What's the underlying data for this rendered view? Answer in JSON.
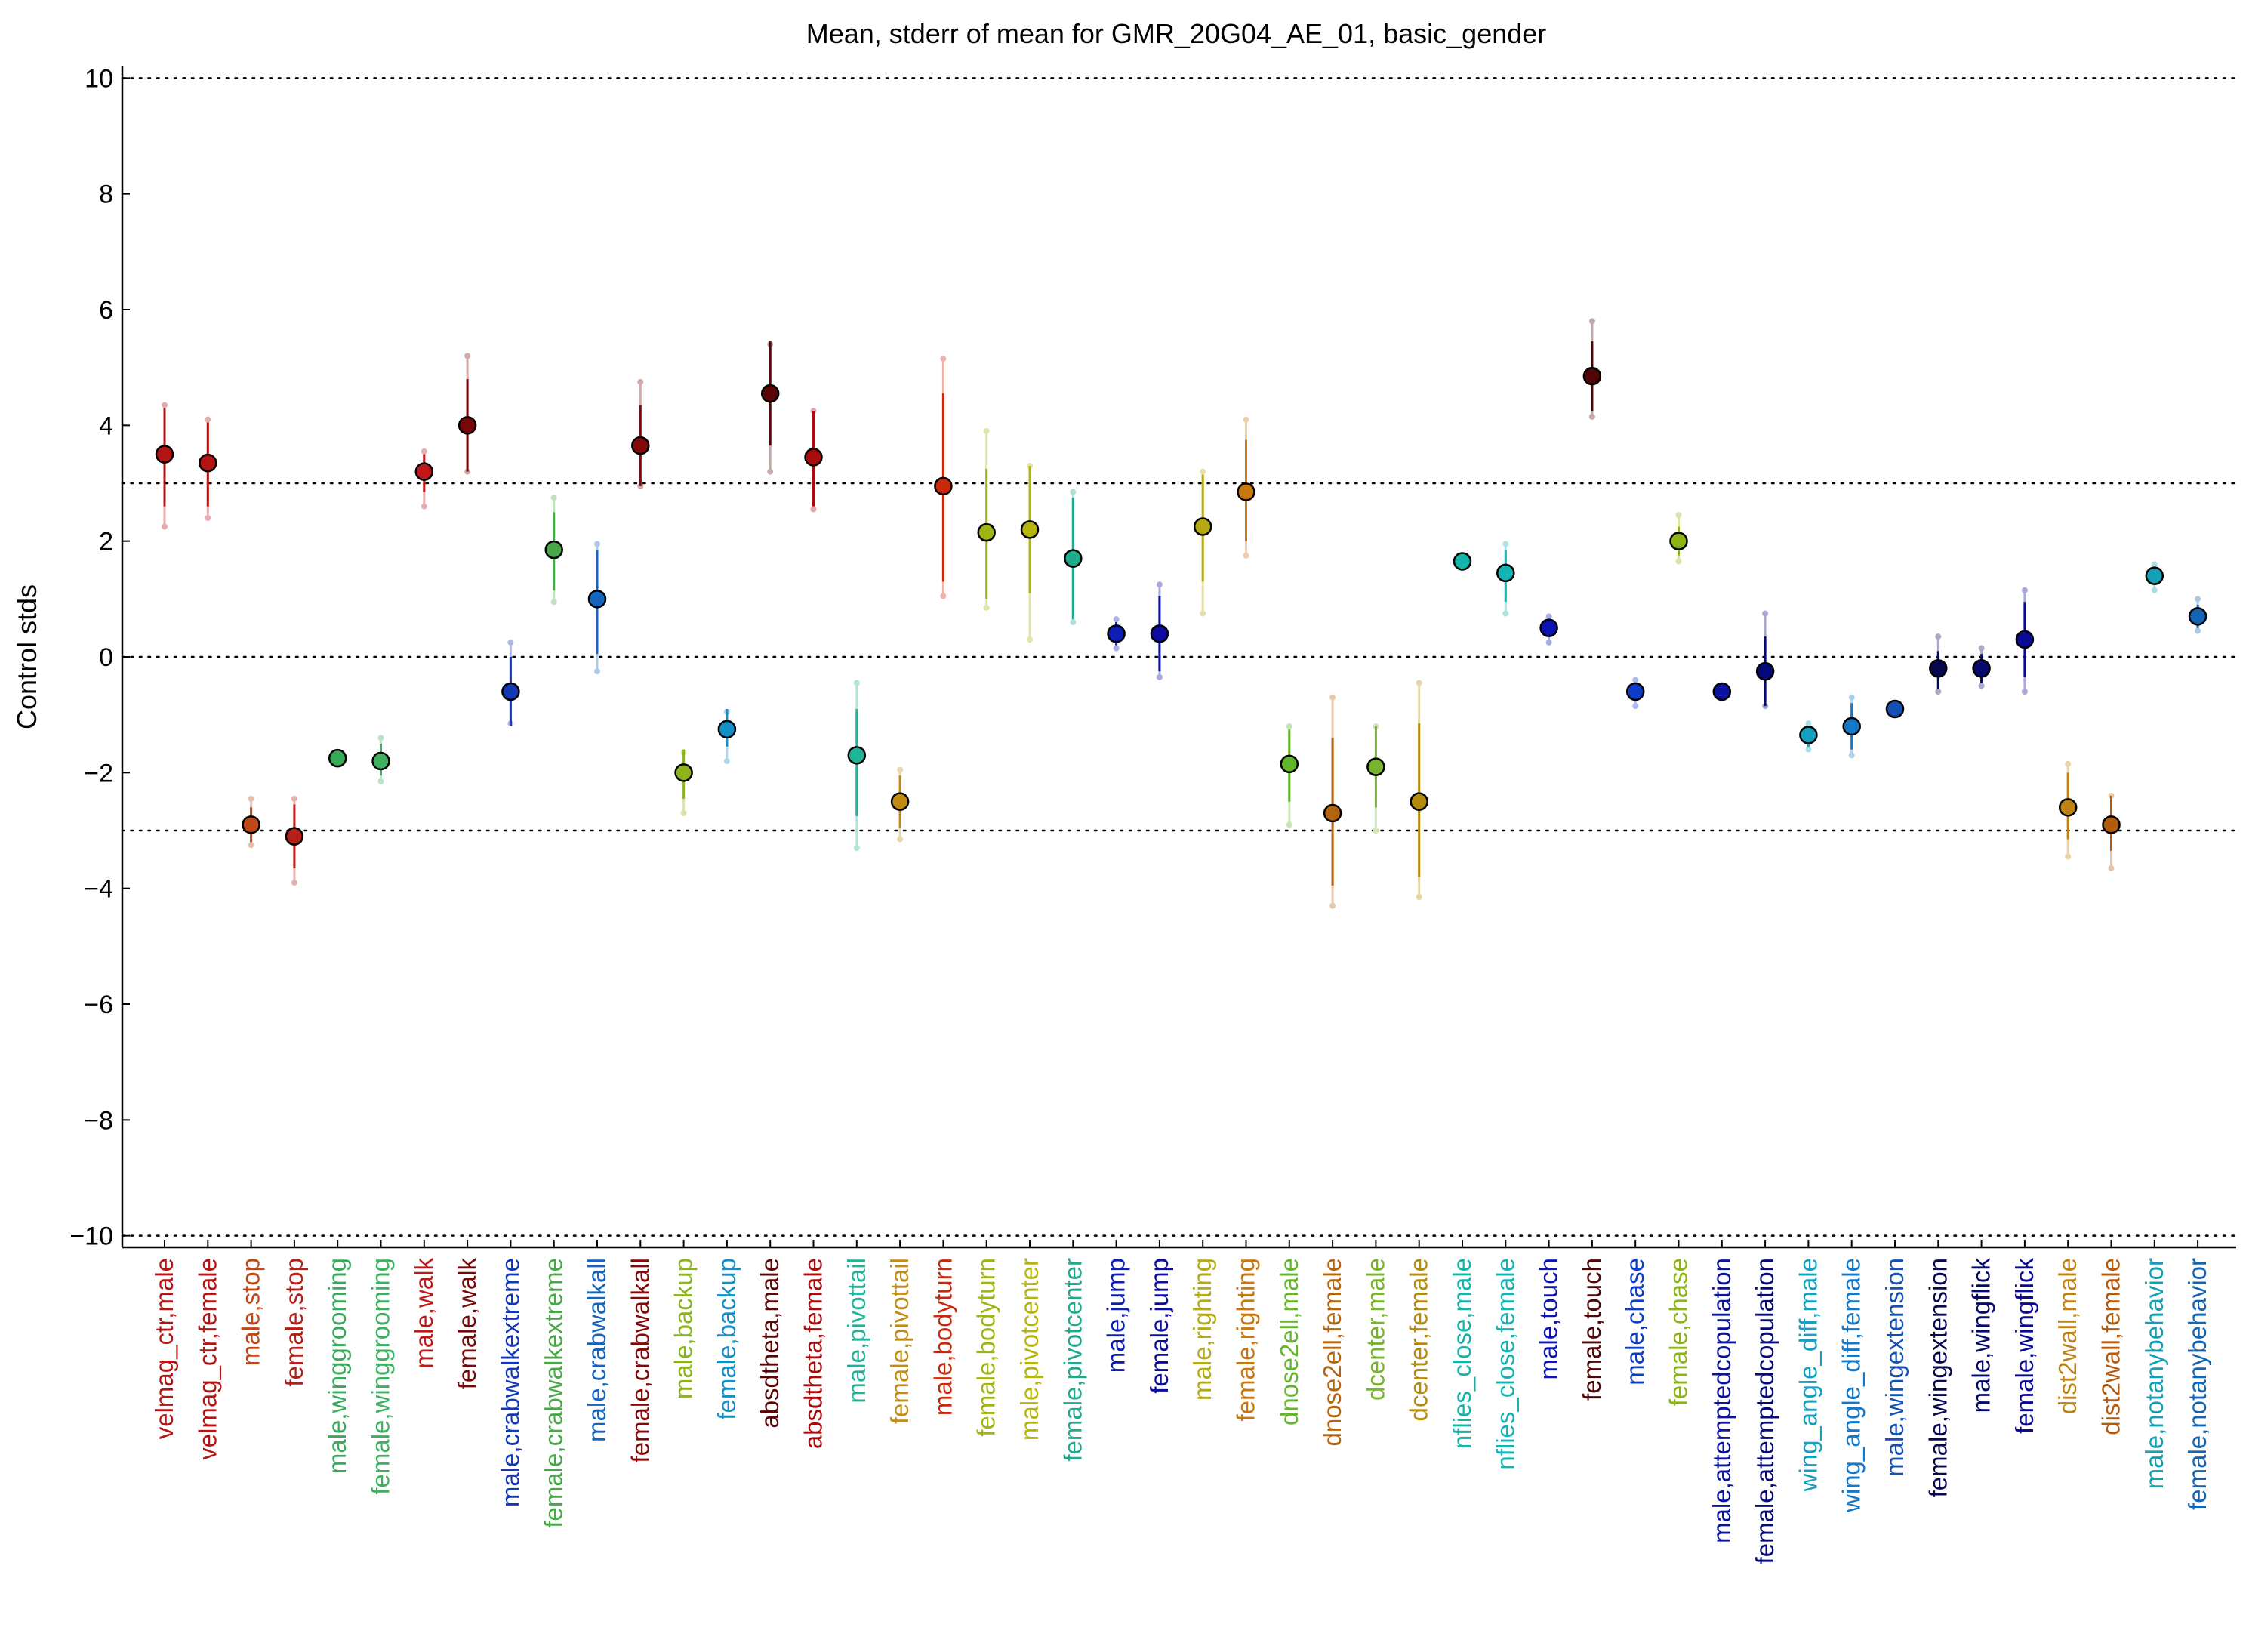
{
  "chart_data": {
    "type": "scatter",
    "title": "Mean, stderr of mean for GMR_20G04_AE_01, basic_gender",
    "xlabel": "",
    "ylabel": "Control stds",
    "ylim": [
      -10.2,
      10.2
    ],
    "yticks": [
      10,
      8,
      6,
      4,
      2,
      0,
      -2,
      -4,
      -6,
      -8,
      -10
    ],
    "ytick_labels": [
      "10",
      "8",
      "6",
      "4",
      "2",
      "0",
      "−2",
      "−4",
      "−6",
      "−8",
      "−10"
    ],
    "hlines": [
      10,
      3,
      0,
      -3,
      -10
    ],
    "grid": false,
    "points": [
      {
        "label": "velmag_ctr,male",
        "mean": 3.5,
        "se_lo": 2.6,
        "se_hi": 4.3,
        "sd_lo": 2.25,
        "sd_hi": 4.35,
        "color": "#b41414"
      },
      {
        "label": "velmag_ctr,female",
        "mean": 3.35,
        "se_lo": 2.6,
        "se_hi": 4.05,
        "sd_lo": 2.4,
        "sd_hi": 4.1,
        "color": "#b41414"
      },
      {
        "label": "male,stop",
        "mean": -2.9,
        "se_lo": -3.2,
        "se_hi": -2.6,
        "sd_lo": -3.25,
        "sd_hi": -2.45,
        "color": "#c04818"
      },
      {
        "label": "female,stop",
        "mean": -3.1,
        "se_lo": -3.65,
        "se_hi": -2.55,
        "sd_lo": -3.9,
        "sd_hi": -2.45,
        "color": "#b42018"
      },
      {
        "label": "male,winggrooming",
        "mean": -1.75,
        "se_lo": -1.75,
        "se_hi": -1.75,
        "sd_lo": -1.75,
        "sd_hi": -1.75,
        "color": "#38aa5a"
      },
      {
        "label": "female,winggrooming",
        "mean": -1.8,
        "se_lo": -2.05,
        "se_hi": -1.5,
        "sd_lo": -2.15,
        "sd_hi": -1.4,
        "color": "#3eb060"
      },
      {
        "label": "male,walk",
        "mean": 3.2,
        "se_lo": 2.85,
        "se_hi": 3.5,
        "sd_lo": 2.6,
        "sd_hi": 3.55,
        "color": "#c01818"
      },
      {
        "label": "female,walk",
        "mean": 4.0,
        "se_lo": 3.2,
        "se_hi": 4.8,
        "sd_lo": 3.2,
        "sd_hi": 5.2,
        "color": "#780808"
      },
      {
        "label": "male,crabwalkextreme",
        "mean": -0.6,
        "se_lo": -1.2,
        "se_hi": 0.0,
        "sd_lo": -1.15,
        "sd_hi": 0.25,
        "color": "#1438b4"
      },
      {
        "label": "female,crabwalkextreme",
        "mean": 1.85,
        "se_lo": 1.15,
        "se_hi": 2.5,
        "sd_lo": 0.95,
        "sd_hi": 2.75,
        "color": "#48a848"
      },
      {
        "label": "male,crabwalkall",
        "mean": 1.0,
        "se_lo": 0.05,
        "se_hi": 1.85,
        "sd_lo": -0.25,
        "sd_hi": 1.95,
        "color": "#1464c0"
      },
      {
        "label": "female,crabwalkall",
        "mean": 3.65,
        "se_lo": 2.95,
        "se_hi": 4.35,
        "sd_lo": 2.95,
        "sd_hi": 4.75,
        "color": "#840a0a"
      },
      {
        "label": "male,backup",
        "mean": -2.0,
        "se_lo": -2.45,
        "se_hi": -1.6,
        "sd_lo": -2.7,
        "sd_hi": -1.65,
        "color": "#8cb41e"
      },
      {
        "label": "female,backup",
        "mean": -1.25,
        "se_lo": -1.55,
        "se_hi": -0.9,
        "sd_lo": -1.8,
        "sd_hi": -0.95,
        "color": "#1490c8"
      },
      {
        "label": "absdtheta,male",
        "mean": 4.55,
        "se_lo": 3.65,
        "se_hi": 5.45,
        "sd_lo": 3.2,
        "sd_hi": 5.4,
        "color": "#5a0606"
      },
      {
        "label": "absdtheta,female",
        "mean": 3.45,
        "se_lo": 2.6,
        "se_hi": 4.25,
        "sd_lo": 2.55,
        "sd_hi": 4.25,
        "color": "#a80c0c"
      },
      {
        "label": "male,pivottail",
        "mean": -1.7,
        "se_lo": -2.75,
        "se_hi": -0.9,
        "sd_lo": -3.3,
        "sd_hi": -0.45,
        "color": "#1eb49a"
      },
      {
        "label": "female,pivottail",
        "mean": -2.5,
        "se_lo": -2.95,
        "se_hi": -2.05,
        "sd_lo": -3.15,
        "sd_hi": -1.95,
        "color": "#c08c14"
      },
      {
        "label": "male,bodyturn",
        "mean": 2.95,
        "se_lo": 1.3,
        "se_hi": 4.55,
        "sd_lo": 1.05,
        "sd_hi": 5.15,
        "color": "#c8280c"
      },
      {
        "label": "female,bodyturn",
        "mean": 2.15,
        "se_lo": 1.0,
        "se_hi": 3.25,
        "sd_lo": 0.85,
        "sd_hi": 3.9,
        "color": "#a0b414"
      },
      {
        "label": "male,pivotcenter",
        "mean": 2.2,
        "se_lo": 1.1,
        "se_hi": 3.3,
        "sd_lo": 0.3,
        "sd_hi": 3.3,
        "color": "#b4b40c"
      },
      {
        "label": "female,pivotcenter",
        "mean": 1.7,
        "se_lo": 0.65,
        "se_hi": 2.75,
        "sd_lo": 0.6,
        "sd_hi": 2.85,
        "color": "#1eaa8c"
      },
      {
        "label": "male,jump",
        "mean": 0.4,
        "se_lo": 0.2,
        "se_hi": 0.6,
        "sd_lo": 0.15,
        "sd_hi": 0.65,
        "color": "#0c1eb4"
      },
      {
        "label": "female,jump",
        "mean": 0.4,
        "se_lo": -0.25,
        "se_hi": 1.05,
        "sd_lo": -0.35,
        "sd_hi": 1.25,
        "color": "#0c0ca0"
      },
      {
        "label": "male,righting",
        "mean": 2.25,
        "se_lo": 1.3,
        "se_hi": 3.15,
        "sd_lo": 0.75,
        "sd_hi": 3.2,
        "color": "#b4aa14"
      },
      {
        "label": "female,righting",
        "mean": 2.85,
        "se_lo": 2.0,
        "se_hi": 3.75,
        "sd_lo": 1.75,
        "sd_hi": 4.1,
        "color": "#c8780c"
      },
      {
        "label": "dnose2ell,male",
        "mean": -1.85,
        "se_lo": -2.5,
        "se_hi": -1.25,
        "sd_lo": -2.9,
        "sd_hi": -1.2,
        "color": "#64b42d"
      },
      {
        "label": "dnose2ell,female",
        "mean": -2.7,
        "se_lo": -3.95,
        "se_hi": -1.4,
        "sd_lo": -4.3,
        "sd_hi": -0.7,
        "color": "#b4640c"
      },
      {
        "label": "dcenter,male",
        "mean": -1.9,
        "se_lo": -2.6,
        "se_hi": -1.2,
        "sd_lo": -3.0,
        "sd_hi": -1.2,
        "color": "#78b42d"
      },
      {
        "label": "dcenter,female",
        "mean": -2.5,
        "se_lo": -3.8,
        "se_hi": -1.15,
        "sd_lo": -4.15,
        "sd_hi": -0.45,
        "color": "#b48c0c"
      },
      {
        "label": "nflies_close,male",
        "mean": 1.65,
        "se_lo": 1.6,
        "se_hi": 1.7,
        "sd_lo": 1.6,
        "sd_hi": 1.7,
        "color": "#14b4aa"
      },
      {
        "label": "nflies_close,female",
        "mean": 1.45,
        "se_lo": 0.95,
        "se_hi": 1.85,
        "sd_lo": 0.75,
        "sd_hi": 1.95,
        "color": "#14b4b4"
      },
      {
        "label": "male,touch",
        "mean": 0.5,
        "se_lo": 0.35,
        "se_hi": 0.65,
        "sd_lo": 0.25,
        "sd_hi": 0.7,
        "color": "#0c14b4"
      },
      {
        "label": "female,touch",
        "mean": 4.85,
        "se_lo": 4.25,
        "se_hi": 5.45,
        "sd_lo": 4.15,
        "sd_hi": 5.8,
        "color": "#500606"
      },
      {
        "label": "male,chase",
        "mean": -0.6,
        "se_lo": -0.75,
        "se_hi": -0.45,
        "sd_lo": -0.85,
        "sd_hi": -0.4,
        "color": "#0c3cc8"
      },
      {
        "label": "female,chase",
        "mean": 2.0,
        "se_lo": 1.75,
        "se_hi": 2.25,
        "sd_lo": 1.65,
        "sd_hi": 2.45,
        "color": "#8cb414"
      },
      {
        "label": "male,attemptedcopulation",
        "mean": -0.6,
        "se_lo": -0.6,
        "se_hi": -0.6,
        "sd_lo": -0.6,
        "sd_hi": -0.6,
        "color": "#0a14a0"
      },
      {
        "label": "female,attemptedcopulation",
        "mean": -0.25,
        "se_lo": -0.85,
        "se_hi": 0.35,
        "sd_lo": -0.85,
        "sd_hi": 0.75,
        "color": "#060a78"
      },
      {
        "label": "wing_angle_diff,male",
        "mean": -1.35,
        "se_lo": -1.55,
        "se_hi": -1.2,
        "sd_lo": -1.6,
        "sd_hi": -1.15,
        "color": "#14a0be"
      },
      {
        "label": "wing_angle_diff,female",
        "mean": -1.2,
        "se_lo": -1.6,
        "se_hi": -0.8,
        "sd_lo": -1.7,
        "sd_hi": -0.7,
        "color": "#1478c8"
      },
      {
        "label": "male,wingextension",
        "mean": -0.9,
        "se_lo": -0.9,
        "se_hi": -0.9,
        "sd_lo": -0.9,
        "sd_hi": -0.9,
        "color": "#1450b4"
      },
      {
        "label": "female,wingextension",
        "mean": -0.2,
        "se_lo": -0.55,
        "se_hi": 0.1,
        "sd_lo": -0.6,
        "sd_hi": 0.35,
        "color": "#080850"
      },
      {
        "label": "male,wingflick",
        "mean": -0.2,
        "se_lo": -0.45,
        "se_hi": 0.05,
        "sd_lo": -0.5,
        "sd_hi": 0.15,
        "color": "#060a6e"
      },
      {
        "label": "female,wingflick",
        "mean": 0.3,
        "se_lo": -0.35,
        "se_hi": 0.95,
        "sd_lo": -0.6,
        "sd_hi": 1.15,
        "color": "#0a0a96"
      },
      {
        "label": "dist2wall,male",
        "mean": -2.6,
        "se_lo": -3.15,
        "se_hi": -2.0,
        "sd_lo": -3.45,
        "sd_hi": -1.85,
        "color": "#be8214"
      },
      {
        "label": "dist2wall,female",
        "mean": -2.9,
        "se_lo": -3.35,
        "se_hi": -2.4,
        "sd_lo": -3.65,
        "sd_hi": -2.4,
        "color": "#b45a0c"
      },
      {
        "label": "male,notanybehavior",
        "mean": 1.4,
        "se_lo": 1.25,
        "se_hi": 1.55,
        "sd_lo": 1.15,
        "sd_hi": 1.6,
        "color": "#14a0b4"
      },
      {
        "label": "female,notanybehavior",
        "mean": 0.7,
        "se_lo": 0.5,
        "se_hi": 0.9,
        "sd_lo": 0.45,
        "sd_hi": 1.0,
        "color": "#1464b4"
      }
    ]
  }
}
